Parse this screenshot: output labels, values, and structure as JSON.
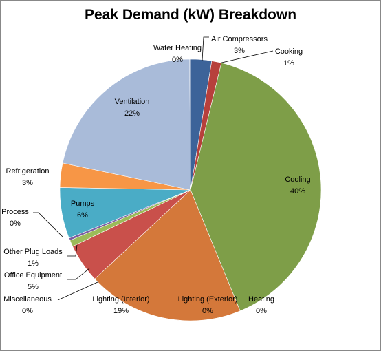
{
  "chart_data": {
    "type": "pie",
    "title": "Peak Demand (kW) Breakdown",
    "slices": [
      {
        "label": "Air Compressors",
        "pct_label": "3%",
        "value": 2.6,
        "color": "#3c6399"
      },
      {
        "label": "Cooking",
        "pct_label": "1%",
        "value": 1.2,
        "color": "#b7403c"
      },
      {
        "label": "Cooling",
        "pct_label": "40%",
        "value": 40.0,
        "color": "#7e9e48"
      },
      {
        "label": "Heating",
        "pct_label": "0%",
        "value": 0.0,
        "color": "#6b4d8e"
      },
      {
        "label": "Lighting (Exterior)",
        "pct_label": "0%",
        "value": 0.0,
        "color": "#3d9ab5"
      },
      {
        "label": "Lighting (Interior)",
        "pct_label": "19%",
        "value": 19.3,
        "color": "#d4783a"
      },
      {
        "label": "Miscellaneous",
        "pct_label": "0%",
        "value": 0.0,
        "color": "#7f9bc9"
      },
      {
        "label": "Office Equipment",
        "pct_label": "5%",
        "value": 4.8,
        "color": "#c9504b"
      },
      {
        "label": "Other Plug Loads",
        "pct_label": "1%",
        "value": 0.8,
        "color": "#9bbb59"
      },
      {
        "label": "Process",
        "pct_label": "0%",
        "value": 0.3,
        "color": "#7b5ea2"
      },
      {
        "label": "Pumps",
        "pct_label": "6%",
        "value": 6.3,
        "color": "#4aacc6"
      },
      {
        "label": "Refrigeration",
        "pct_label": "3%",
        "value": 3.0,
        "color": "#f79646"
      },
      {
        "label": "Ventilation",
        "pct_label": "22%",
        "value": 21.6,
        "color": "#a9bbd9"
      },
      {
        "label": "Water Heating",
        "pct_label": "0%",
        "value": 0.1,
        "color": "#2c4d75"
      }
    ]
  }
}
